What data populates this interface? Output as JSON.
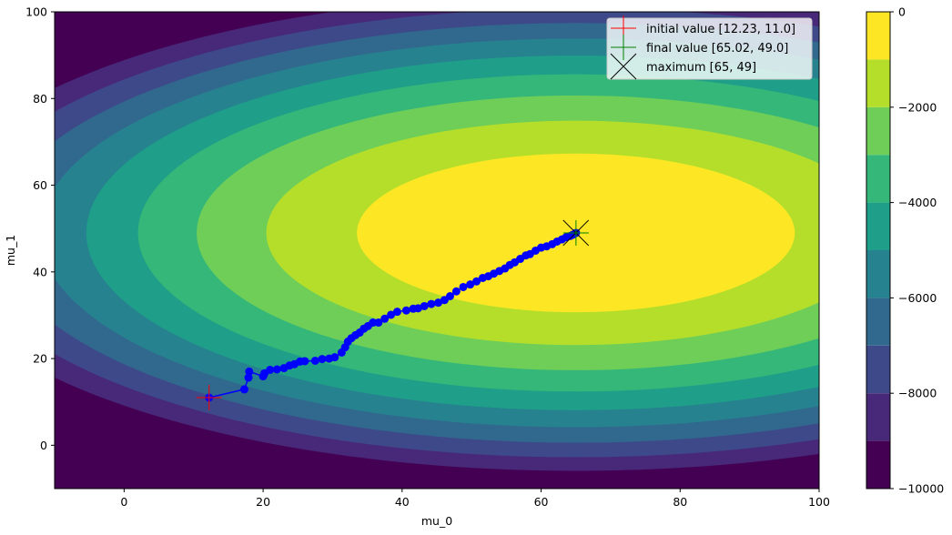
{
  "chart_data": {
    "type": "contour",
    "xlabel": "mu_0",
    "ylabel": "mu_1",
    "xlim": [
      -10,
      100
    ],
    "ylim": [
      -10,
      100
    ],
    "x_ticks": [
      0,
      20,
      40,
      60,
      80,
      100
    ],
    "y_ticks": [
      0,
      20,
      40,
      60,
      80,
      100
    ],
    "maximum": [
      65,
      49
    ],
    "contour_radii": {
      "x_per_sqrt_1000": 31.5,
      "y_per_sqrt_1000": 18.3
    },
    "levels": [
      -10000,
      -9000,
      -8000,
      -7000,
      -6000,
      -5000,
      -4000,
      -3000,
      -2000,
      -1000,
      0
    ],
    "level_colors": [
      "#440154",
      "#482878",
      "#3e4989",
      "#31688e",
      "#26828e",
      "#1f9e89",
      "#35b779",
      "#6ece58",
      "#b5de2b",
      "#fde725"
    ],
    "colorbar": {
      "range": [
        -10000,
        0
      ],
      "ticks": [
        0,
        -2000,
        -4000,
        -6000,
        -8000,
        -10000
      ],
      "tick_labels": [
        "0",
        "−2000",
        "−4000",
        "−6000",
        "−8000",
        "−10000"
      ]
    },
    "path": {
      "color": "#0000ff",
      "x": [
        12.23,
        17.3,
        17.9,
        18.0,
        20.0,
        20.2,
        21.0,
        22.0,
        23.0,
        23.8,
        24.5,
        25.3,
        26.0,
        27.5,
        28.5,
        29.5,
        30.3,
        31.3,
        31.8,
        32.2,
        32.7,
        33.3,
        33.9,
        34.5,
        35.1,
        35.8,
        36.6,
        37.5,
        38.4,
        39.3,
        40.6,
        41.6,
        42.3,
        43.2,
        44.2,
        45.2,
        46.1,
        46.9,
        47.8,
        48.8,
        49.8,
        50.7,
        51.6,
        52.4,
        53.2,
        54.0,
        54.8,
        55.5,
        56.2,
        57.0,
        57.8,
        58.4,
        59.2,
        60.0,
        60.8,
        61.6,
        62.3,
        63.0,
        63.6,
        64.2,
        64.6,
        65.02
      ],
      "y": [
        11.0,
        12.9,
        15.6,
        17.0,
        15.9,
        16.6,
        17.4,
        17.5,
        17.8,
        18.4,
        18.7,
        19.3,
        19.4,
        19.5,
        19.9,
        20.0,
        20.3,
        21.4,
        22.6,
        23.9,
        24.7,
        25.4,
        26.0,
        26.9,
        27.5,
        28.3,
        28.3,
        29.2,
        30.1,
        30.8,
        31.1,
        31.5,
        31.6,
        32.1,
        32.6,
        32.9,
        33.5,
        34.4,
        35.5,
        36.5,
        37.1,
        37.8,
        38.6,
        39.0,
        39.6,
        40.2,
        40.8,
        41.6,
        42.2,
        43.0,
        43.8,
        44.1,
        44.9,
        45.6,
        45.9,
        46.4,
        47.0,
        47.5,
        48.0,
        48.3,
        48.6,
        49.0
      ]
    },
    "legend": {
      "placement": "upper right",
      "entries": [
        {
          "label": "initial value [12.23, 11.0]",
          "marker": "plus",
          "color": "#ff0000",
          "point": [
            12.23,
            11.0
          ]
        },
        {
          "label": "final value [65.02, 49.0]",
          "marker": "plus",
          "color": "#008000",
          "point": [
            65.02,
            49.0
          ]
        },
        {
          "label": "maximum [65, 49]",
          "marker": "x",
          "color": "#000000",
          "point": [
            65,
            49
          ]
        }
      ]
    }
  }
}
